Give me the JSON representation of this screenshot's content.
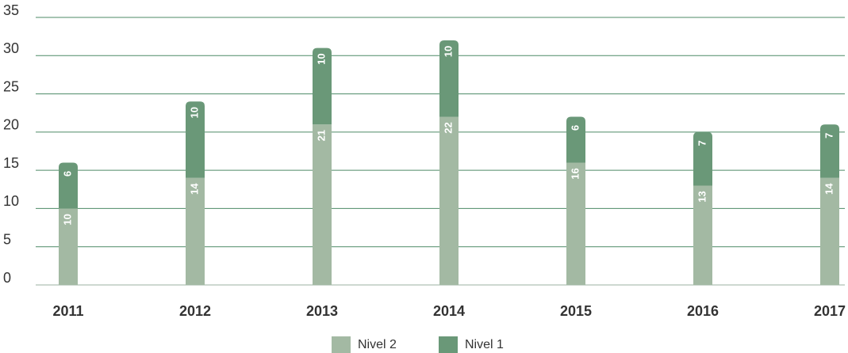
{
  "chart_data": {
    "type": "stacked_bar",
    "categories": [
      "2011",
      "2012",
      "2013",
      "2014",
      "2015",
      "2016",
      "2017"
    ],
    "series": [
      {
        "name": "Nivel 2",
        "color": "#a3b9a3",
        "values": [
          10,
          14,
          21,
          22,
          16,
          13,
          14
        ]
      },
      {
        "name": "Nivel 1",
        "color": "#6a9878",
        "values": [
          6,
          10,
          10,
          10,
          6,
          7,
          7
        ]
      }
    ],
    "ylim": [
      0,
      35
    ],
    "yticks": [
      0,
      5,
      10,
      15,
      20,
      25,
      30,
      35
    ],
    "grid": true
  }
}
